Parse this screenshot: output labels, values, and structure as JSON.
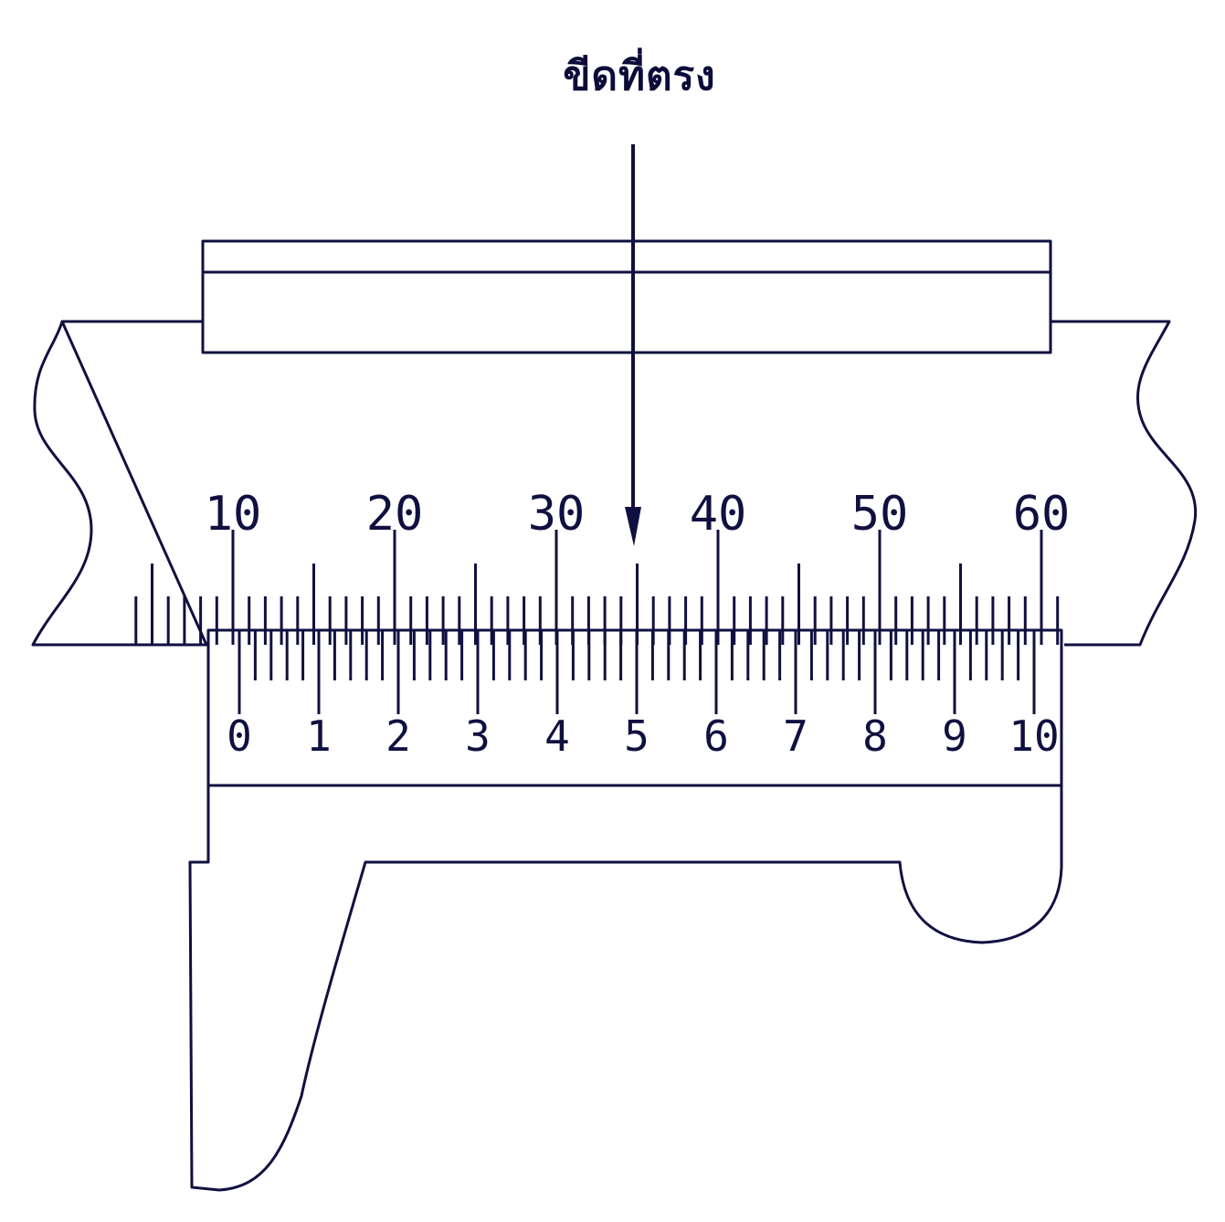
{
  "annotation": {
    "label": "ขีดที่ตรง"
  },
  "main_scale": {
    "labels": [
      "10",
      "20",
      "30",
      "40",
      "50",
      "60"
    ],
    "major_every": 10,
    "half_every": 5,
    "first_tick": 4,
    "last_tick": 61
  },
  "vernier_scale": {
    "labels": [
      "0",
      "1",
      "2",
      "3",
      "4",
      "5",
      "6",
      "7",
      "8",
      "9",
      "10"
    ],
    "divisions": 50,
    "label_every": 5
  },
  "colors": {
    "ink": "#101040",
    "paper": "#ffffff"
  }
}
